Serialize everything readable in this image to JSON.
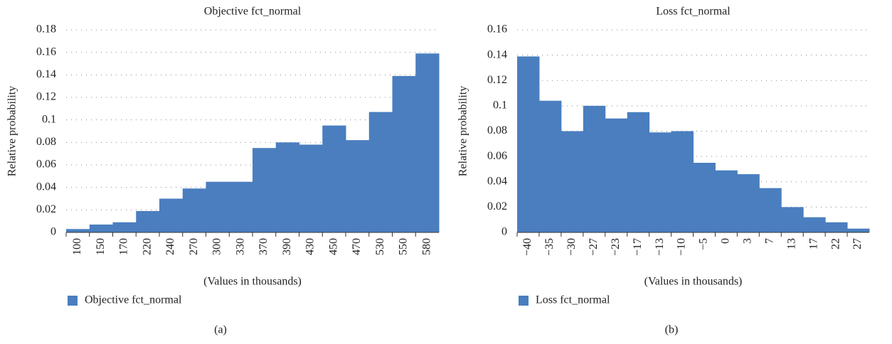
{
  "chart_data": [
    {
      "type": "bar",
      "title": "Objective fct_normal",
      "caption": "(a)",
      "x_label": "(Values in thousands)",
      "y_label": "Relative probability",
      "categories": [
        "100",
        "150",
        "170",
        "220",
        "240",
        "270",
        "300",
        "330",
        "370",
        "390",
        "430",
        "450",
        "470",
        "530",
        "550",
        "580"
      ],
      "series": [
        {
          "name": "Objective fct_normal",
          "color": "#4a7ebf",
          "values": [
            0.003,
            0.007,
            0.009,
            0.019,
            0.03,
            0.039,
            0.045,
            0.045,
            0.075,
            0.08,
            0.078,
            0.095,
            0.082,
            0.107,
            0.139,
            0.159
          ]
        }
      ],
      "ylim": [
        0,
        0.18
      ],
      "yticks": [
        0,
        0.02,
        0.04,
        0.06,
        0.08,
        0.1,
        0.12,
        0.14,
        0.16,
        0.18
      ],
      "grid": true,
      "legend": "bottom-left"
    },
    {
      "type": "bar",
      "title": "Loss fct_normal",
      "caption": "(b)",
      "x_label": "(Values in thousands)",
      "y_label": "Relative probability",
      "categories": [
        "−40",
        "−35",
        "−30",
        "−27",
        "−23",
        "−17",
        "−13",
        "−10",
        "−5",
        "0",
        "3",
        "7",
        "13",
        "17",
        "22",
        "27"
      ],
      "series": [
        {
          "name": "Loss fct_normal",
          "color": "#4a7ebf",
          "values": [
            0.139,
            0.104,
            0.08,
            0.1,
            0.09,
            0.095,
            0.079,
            0.08,
            0.055,
            0.049,
            0.046,
            0.035,
            0.02,
            0.012,
            0.008,
            0.003
          ]
        }
      ],
      "ylim": [
        0,
        0.16
      ],
      "yticks": [
        0,
        0.02,
        0.04,
        0.06,
        0.08,
        0.1,
        0.12,
        0.14,
        0.16
      ],
      "grid": true,
      "legend": "bottom-left"
    }
  ]
}
